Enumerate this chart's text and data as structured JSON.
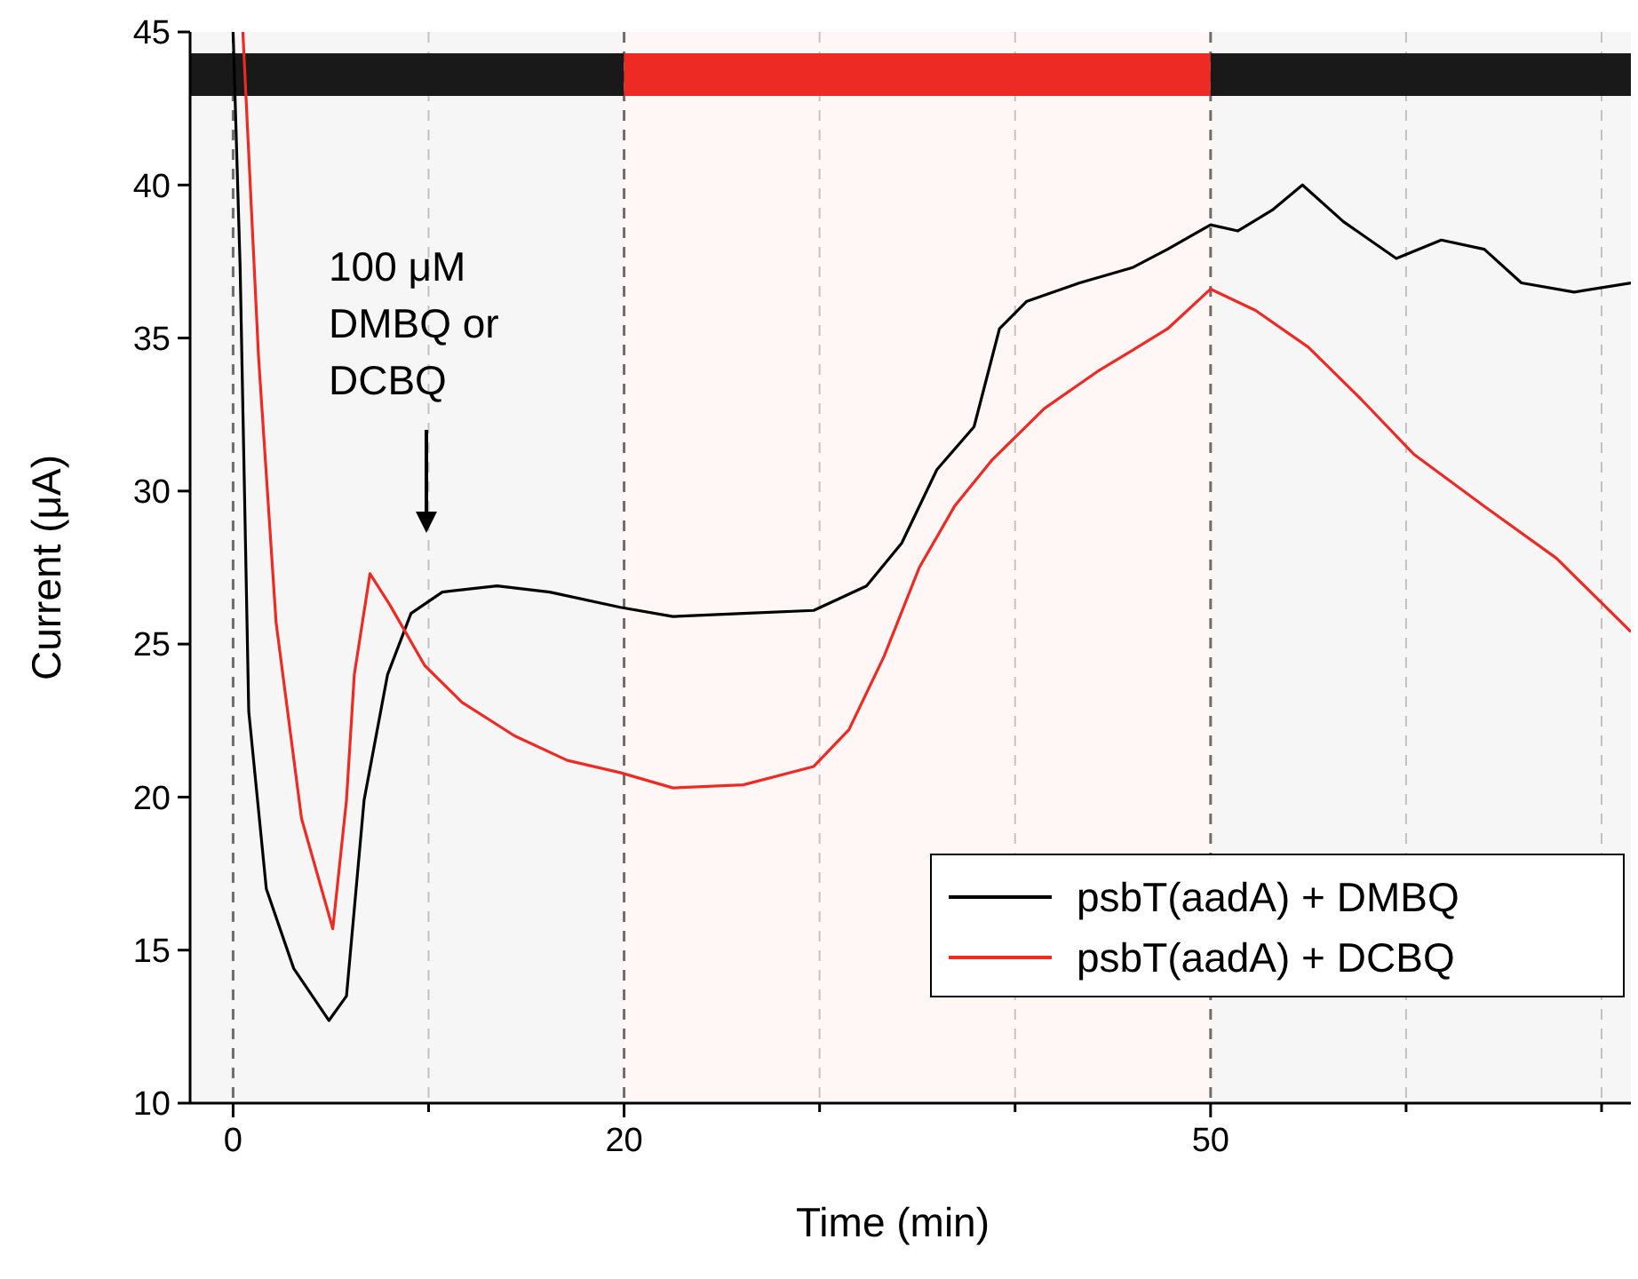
{
  "chart_data": {
    "type": "line",
    "xlabel": "Time (min)",
    "ylabel": "Current (μA)",
    "xlim": [
      -2.2,
      71.5
    ],
    "ylim": [
      10,
      45
    ],
    "xticks": [
      0,
      {
        "value": 10,
        "label": null
      },
      20,
      {
        "value": 30,
        "label": null
      },
      {
        "value": 40,
        "label": null
      },
      50,
      {
        "value": 60,
        "label": null
      },
      {
        "value": 70,
        "label": null
      }
    ],
    "yticks": [
      10,
      15,
      20,
      25,
      30,
      35,
      40,
      45
    ],
    "grid": "x",
    "legend": "bottom right",
    "line_style": "solid",
    "marker": "none",
    "bands": [
      {
        "axis": "x",
        "from": -2.2,
        "to": 20,
        "color": "#1a1a1a"
      },
      {
        "axis": "x",
        "from": 20,
        "to": 50,
        "color": "#ee2a24"
      },
      {
        "axis": "x",
        "from": 50,
        "to": 71.5,
        "color": "#1a1a1a"
      }
    ],
    "annotations": [
      "100 μM\nDMBQ or\nDCBQ"
    ],
    "series": [
      {
        "name": "psbT(aadA) + DMBQ",
        "color": "#000000",
        "x": [
          0,
          0.36,
          0.8,
          1.7,
          3.1,
          4.9,
          5.8,
          6.7,
          7.9,
          9.1,
          10.7,
          13.5,
          16.2,
          19.8,
          22.5,
          26.1,
          29.7,
          32.4,
          34.2,
          36,
          37.9,
          39.2,
          40.6,
          43.3,
          46,
          47.8,
          50,
          51.4,
          53.2,
          54.7,
          56.8,
          59.5,
          61.8,
          64,
          65.9,
          68.6,
          71.5
        ],
        "values": [
          45,
          37.3,
          22.8,
          17,
          14.4,
          12.7,
          13.5,
          19.9,
          24,
          26,
          26.7,
          26.9,
          26.7,
          26.2,
          25.9,
          26,
          26.1,
          26.9,
          28.3,
          30.7,
          32.1,
          35.3,
          36.2,
          36.8,
          37.3,
          37.9,
          38.7,
          38.5,
          39.2,
          40,
          38.8,
          37.6,
          38.2,
          37.9,
          36.8,
          36.5,
          36.8
        ]
      },
      {
        "name": "psbT(aadA) + DCBQ",
        "color": "#ee2a24",
        "x": [
          0.5,
          1.3,
          2.2,
          3.5,
          5.1,
          5.8,
          6.2,
          7,
          8,
          9.8,
          11.7,
          14.4,
          17.1,
          19.8,
          22.5,
          26.1,
          29.7,
          31.5,
          33.3,
          35.1,
          36.9,
          38.8,
          41.5,
          44.2,
          47.8,
          50,
          52.3,
          55,
          57.7,
          60.4,
          64,
          67.7,
          71.5
        ],
        "values": [
          45,
          34.4,
          25.7,
          19.3,
          15.7,
          19.9,
          24,
          27.3,
          26.3,
          24.3,
          23.1,
          22,
          21.2,
          20.8,
          20.3,
          20.4,
          21,
          22.2,
          24.6,
          27.5,
          29.5,
          31,
          32.7,
          33.9,
          35.3,
          36.6,
          35.9,
          34.7,
          33,
          31.2,
          29.5,
          27.8,
          25.4
        ]
      }
    ]
  }
}
